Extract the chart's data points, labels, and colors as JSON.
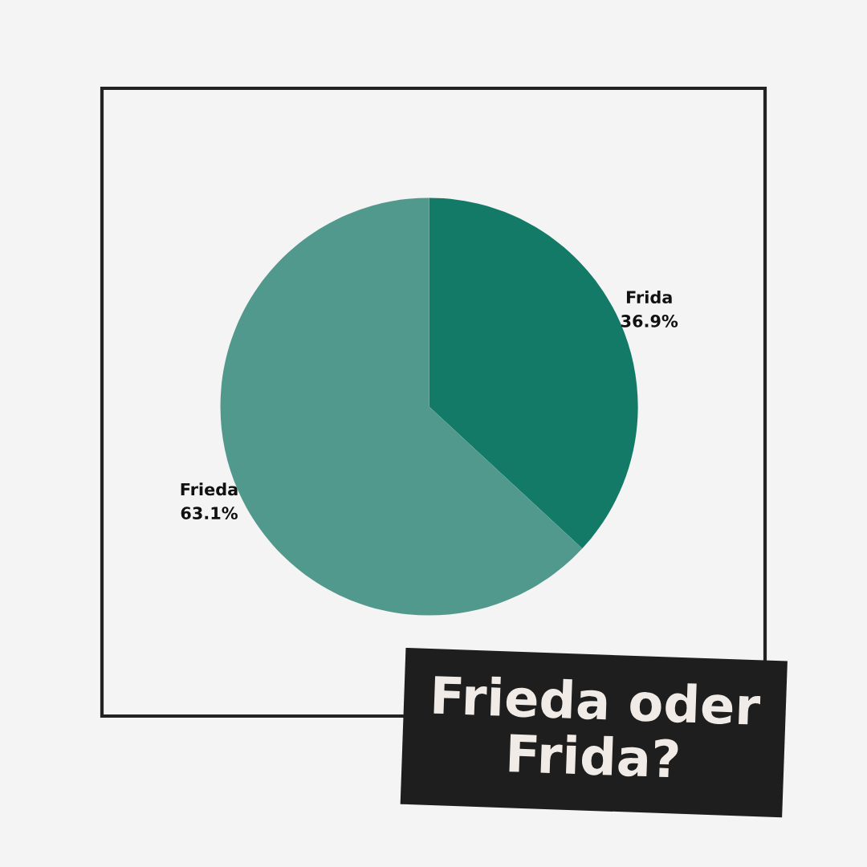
{
  "chart_data": {
    "type": "pie",
    "title": "Frieda oder Frida?",
    "categories": [
      "Frida",
      "Frieda"
    ],
    "values": [
      36.9,
      63.1
    ],
    "colors": [
      "#147a68",
      "#52998d"
    ],
    "value_labels": [
      "36.9%",
      "63.1%"
    ]
  }
}
